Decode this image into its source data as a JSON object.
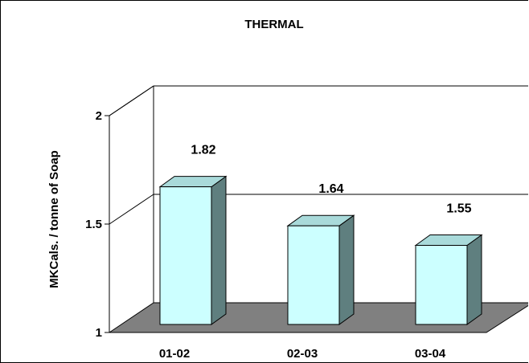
{
  "chart_data": {
    "type": "bar",
    "title": "THERMAL",
    "xlabel": "",
    "ylabel": "MKCals. / tonne of Soap",
    "categories": [
      "01-02",
      "02-03",
      "03-04"
    ],
    "values": [
      1.82,
      1.64,
      1.55
    ],
    "data_labels": [
      "1.82",
      "1.64",
      "1.55"
    ],
    "ylim": [
      1,
      2
    ],
    "yticks": [
      1,
      1.5,
      2
    ],
    "ytick_labels": [
      "1",
      "1.5",
      "2"
    ],
    "grid": true,
    "legend": "none",
    "style": "3d-column",
    "colors": {
      "bar_front": "#ccffff",
      "bar_side": "#5f7f7f",
      "bar_top": "#a9dada",
      "floor": "#808080"
    }
  }
}
